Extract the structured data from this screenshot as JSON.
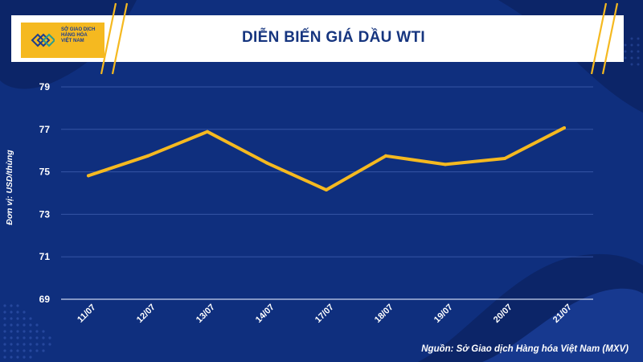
{
  "logo": {
    "lines": [
      "SỞ GIAO DỊCH",
      "HÀNG HÓA",
      "VIỆT NAM"
    ]
  },
  "colors": {
    "background": "#0f2f7e",
    "line": "#f5b920",
    "accent_yellow": "#f5b920",
    "title": "#16357f"
  },
  "chart_data": {
    "type": "line",
    "title": "DIỄN BIẾN GIÁ DẦU WTI",
    "xlabel": "",
    "ylabel": "Đơn vị: USD/thùng",
    "categories": [
      "11/07",
      "12/07",
      "13/07",
      "14/07",
      "17/07",
      "18/07",
      "19/07",
      "20/07",
      "21/07"
    ],
    "series": [
      {
        "values": [
          74.82,
          75.75,
          76.89,
          75.42,
          74.15,
          75.75,
          75.35,
          75.63,
          77.07
        ]
      }
    ],
    "yticks": [
      "69",
      "71",
      "73",
      "75",
      "77",
      "79"
    ],
    "ylim": [
      69,
      79
    ],
    "grid": true,
    "legend": "none"
  },
  "source": "Nguồn: Sở Giao dịch Hàng hóa Việt Nam (MXV)"
}
